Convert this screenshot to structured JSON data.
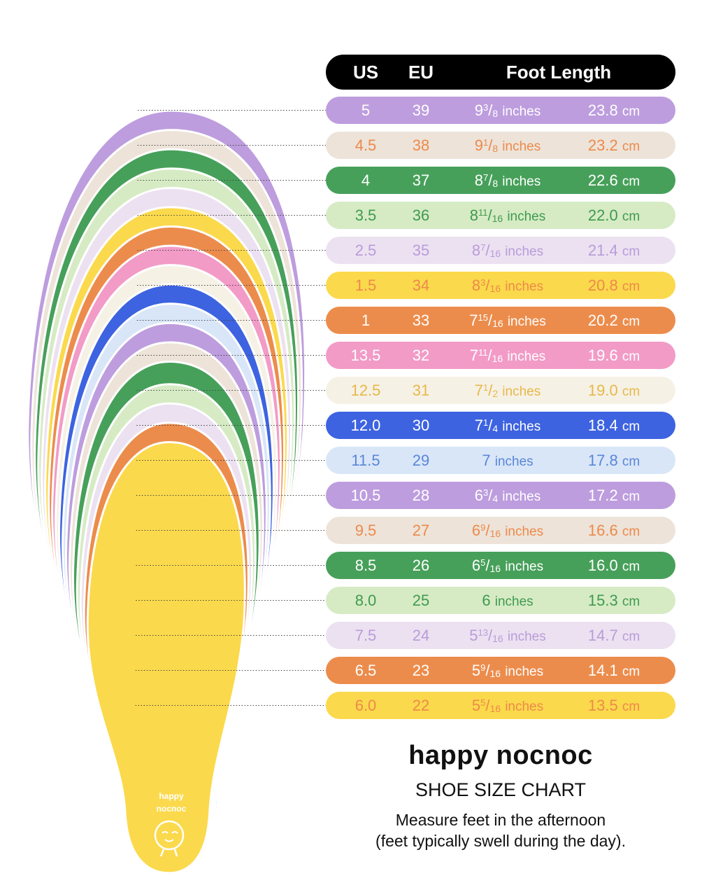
{
  "header": {
    "us": "US",
    "eu": "EU",
    "foot_length": "Foot Length"
  },
  "chart_data": {
    "type": "table",
    "title": "SHOE SIZE CHART",
    "columns": [
      "US",
      "EU",
      "Foot Length (inches)",
      "Foot Length (cm)"
    ],
    "rows": [
      {
        "us": "5",
        "eu": "39",
        "whole": "9",
        "num": "3",
        "den": "8",
        "inch_word": "inches",
        "cm": "23.8",
        "cm_unit": "cm",
        "bg": "#bd9dde",
        "fg": "#ffffff"
      },
      {
        "us": "4.5",
        "eu": "38",
        "whole": "9",
        "num": "1",
        "den": "8",
        "inch_word": "inches",
        "cm": "23.2",
        "cm_unit": "cm",
        "bg": "#ede3d9",
        "fg": "#ec8a4a"
      },
      {
        "us": "4",
        "eu": "37",
        "whole": "8",
        "num": "7",
        "den": "8",
        "inch_word": "inches",
        "cm": "22.6",
        "cm_unit": "cm",
        "bg": "#47a05a",
        "fg": "#ffffff"
      },
      {
        "us": "3.5",
        "eu": "36",
        "whole": "8",
        "num": "11",
        "den": "16",
        "inch_word": "inches",
        "cm": "22.0",
        "cm_unit": "cm",
        "bg": "#d6ebc4",
        "fg": "#3f9a50"
      },
      {
        "us": "2.5",
        "eu": "35",
        "whole": "8",
        "num": "7",
        "den": "16",
        "inch_word": "inches",
        "cm": "21.4",
        "cm_unit": "cm",
        "bg": "#ece1f1",
        "fg": "#b99cd9"
      },
      {
        "us": "1.5",
        "eu": "34",
        "whole": "8",
        "num": "3",
        "den": "16",
        "inch_word": "inches",
        "cm": "20.8",
        "cm_unit": "cm",
        "bg": "#fbd94c",
        "fg": "#ec8a4a"
      },
      {
        "us": "1",
        "eu": "33",
        "whole": "7",
        "num": "15",
        "den": "16",
        "inch_word": "inches",
        "cm": "20.2",
        "cm_unit": "cm",
        "bg": "#ec8c4c",
        "fg": "#ffffff"
      },
      {
        "us": "13.5",
        "eu": "32",
        "whole": "7",
        "num": "11",
        "den": "16",
        "inch_word": "inches",
        "cm": "19.6",
        "cm_unit": "cm",
        "bg": "#f29bc7",
        "fg": "#ffffff"
      },
      {
        "us": "12.5",
        "eu": "31",
        "whole": "7",
        "num": "1",
        "den": "2",
        "inch_word": "inches",
        "cm": "19.0",
        "cm_unit": "cm",
        "bg": "#f6f1e5",
        "fg": "#e7b84a"
      },
      {
        "us": "12.0",
        "eu": "30",
        "whole": "7",
        "num": "1",
        "den": "4",
        "inch_word": "inches",
        "cm": "18.4",
        "cm_unit": "cm",
        "bg": "#3d63e0",
        "fg": "#ffffff"
      },
      {
        "us": "11.5",
        "eu": "29",
        "whole": "7",
        "num": "",
        "den": "",
        "inch_word": "inches",
        "cm": "17.8",
        "cm_unit": "cm",
        "bg": "#d9e6f8",
        "fg": "#5a86d8"
      },
      {
        "us": "10.5",
        "eu": "28",
        "whole": "6",
        "num": "3",
        "den": "4",
        "inch_word": "inches",
        "cm": "17.2",
        "cm_unit": "cm",
        "bg": "#bd9dde",
        "fg": "#ffffff"
      },
      {
        "us": "9.5",
        "eu": "27",
        "whole": "6",
        "num": "9",
        "den": "16",
        "inch_word": "inches",
        "cm": "16.6",
        "cm_unit": "cm",
        "bg": "#ede3d9",
        "fg": "#ec8a4a"
      },
      {
        "us": "8.5",
        "eu": "26",
        "whole": "6",
        "num": "5",
        "den": "16",
        "inch_word": "inches",
        "cm": "16.0",
        "cm_unit": "cm",
        "bg": "#47a05a",
        "fg": "#ffffff"
      },
      {
        "us": "8.0",
        "eu": "25",
        "whole": "6",
        "num": "",
        "den": "",
        "inch_word": "inches",
        "cm": "15.3",
        "cm_unit": "cm",
        "bg": "#d6ebc4",
        "fg": "#3f9a50"
      },
      {
        "us": "7.5",
        "eu": "24",
        "whole": "5",
        "num": "13",
        "den": "16",
        "inch_word": "inches",
        "cm": "14.7",
        "cm_unit": "cm",
        "bg": "#ece1f1",
        "fg": "#b99cd9"
      },
      {
        "us": "6.5",
        "eu": "23",
        "whole": "5",
        "num": "9",
        "den": "16",
        "inch_word": "inches",
        "cm": "14.1",
        "cm_unit": "cm",
        "bg": "#ec8c4c",
        "fg": "#ffffff"
      },
      {
        "us": "6.0",
        "eu": "22",
        "whole": "5",
        "num": "5",
        "den": "16",
        "inch_word": "inches",
        "cm": "13.5",
        "cm_unit": "cm",
        "bg": "#fbd94c",
        "fg": "#ec8a4a"
      }
    ]
  },
  "brand": {
    "name": "happy nocnoc",
    "subtitle": "SHOE SIZE CHART",
    "note_line1": "Measure feet in the afternoon",
    "note_line2": "(feet typically swell during the day)."
  },
  "logo": {
    "line1": "happy",
    "line2": "nocnoc"
  }
}
